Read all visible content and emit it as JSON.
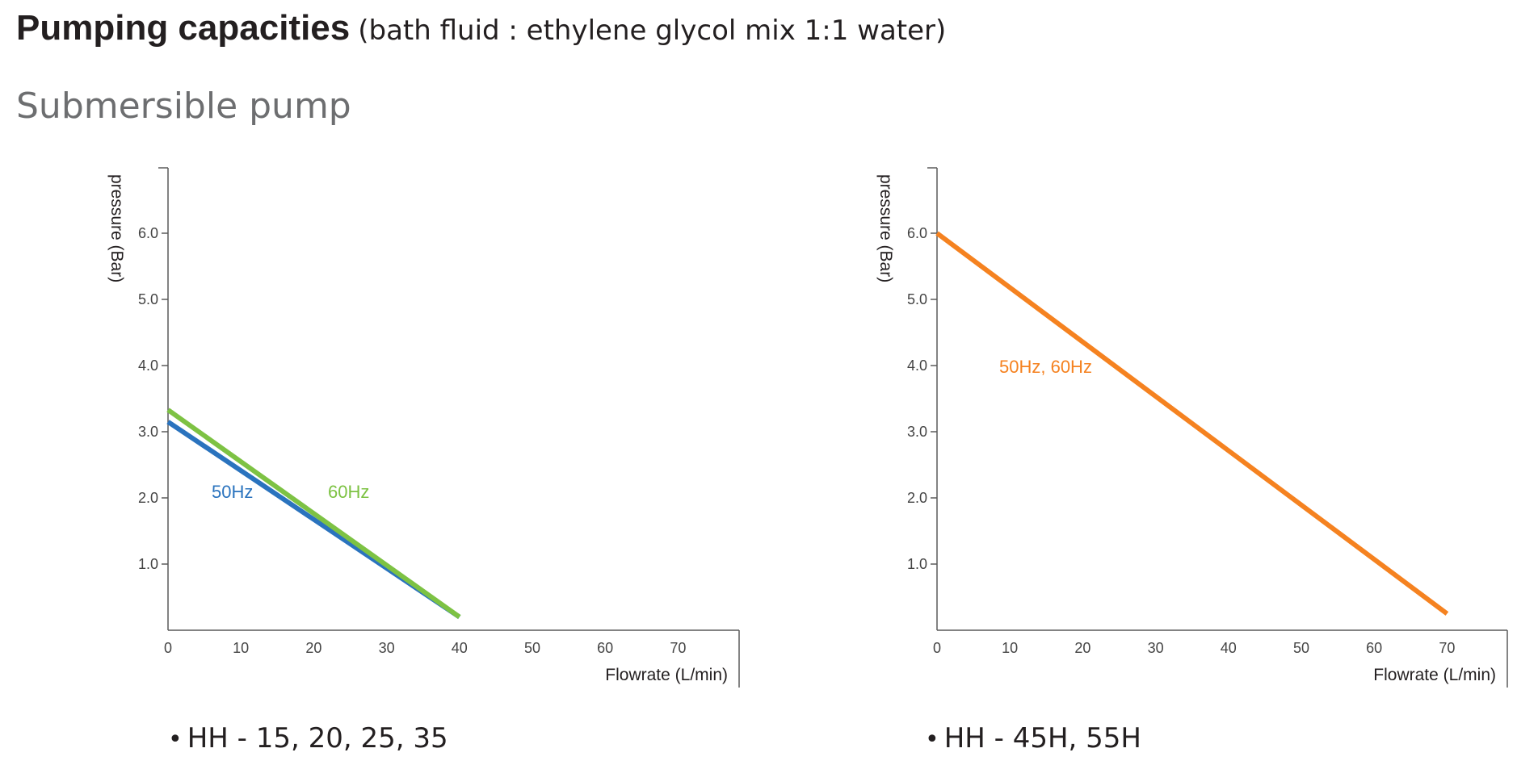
{
  "heading": {
    "title": "Pumping capacities",
    "subtitle": "(bath fluid : ethylene glycol mix 1:1 water)"
  },
  "section": {
    "title": "Submersible pump"
  },
  "colors": {
    "blue": "#2a73be",
    "green": "#7dc243",
    "orange": "#f58220",
    "axis": "#5a5a5a"
  },
  "chart_data": [
    {
      "type": "line",
      "xlabel": "Flowrate (L/min)",
      "ylabel": "pressure (Bar)",
      "xticks": [
        0,
        10,
        20,
        30,
        40,
        50,
        60,
        70
      ],
      "yticks": [
        1.0,
        2.0,
        3.0,
        4.0,
        5.0,
        6.0
      ],
      "xlim": [
        0,
        78
      ],
      "ylim": [
        0,
        7
      ],
      "series": [
        {
          "name": "50Hz",
          "color": "#2a73be",
          "x": [
            0,
            40
          ],
          "y": [
            3.15,
            0.2
          ]
        },
        {
          "name": "60Hz",
          "color": "#7dc243",
          "x": [
            0,
            40
          ],
          "y": [
            3.33,
            0.2
          ]
        }
      ],
      "model": "HH - 15, 20, 25, 35"
    },
    {
      "type": "line",
      "xlabel": "Flowrate (L/min)",
      "ylabel": "pressure (Bar)",
      "xticks": [
        0,
        10,
        20,
        30,
        40,
        50,
        60,
        70
      ],
      "yticks": [
        1.0,
        2.0,
        3.0,
        4.0,
        5.0,
        6.0
      ],
      "xlim": [
        0,
        78
      ],
      "ylim": [
        0,
        7
      ],
      "series": [
        {
          "name": "50Hz, 60Hz",
          "color": "#f58220",
          "x": [
            0,
            70
          ],
          "y": [
            6.0,
            0.25
          ]
        }
      ],
      "model": "HH -  45H, 55H"
    }
  ]
}
